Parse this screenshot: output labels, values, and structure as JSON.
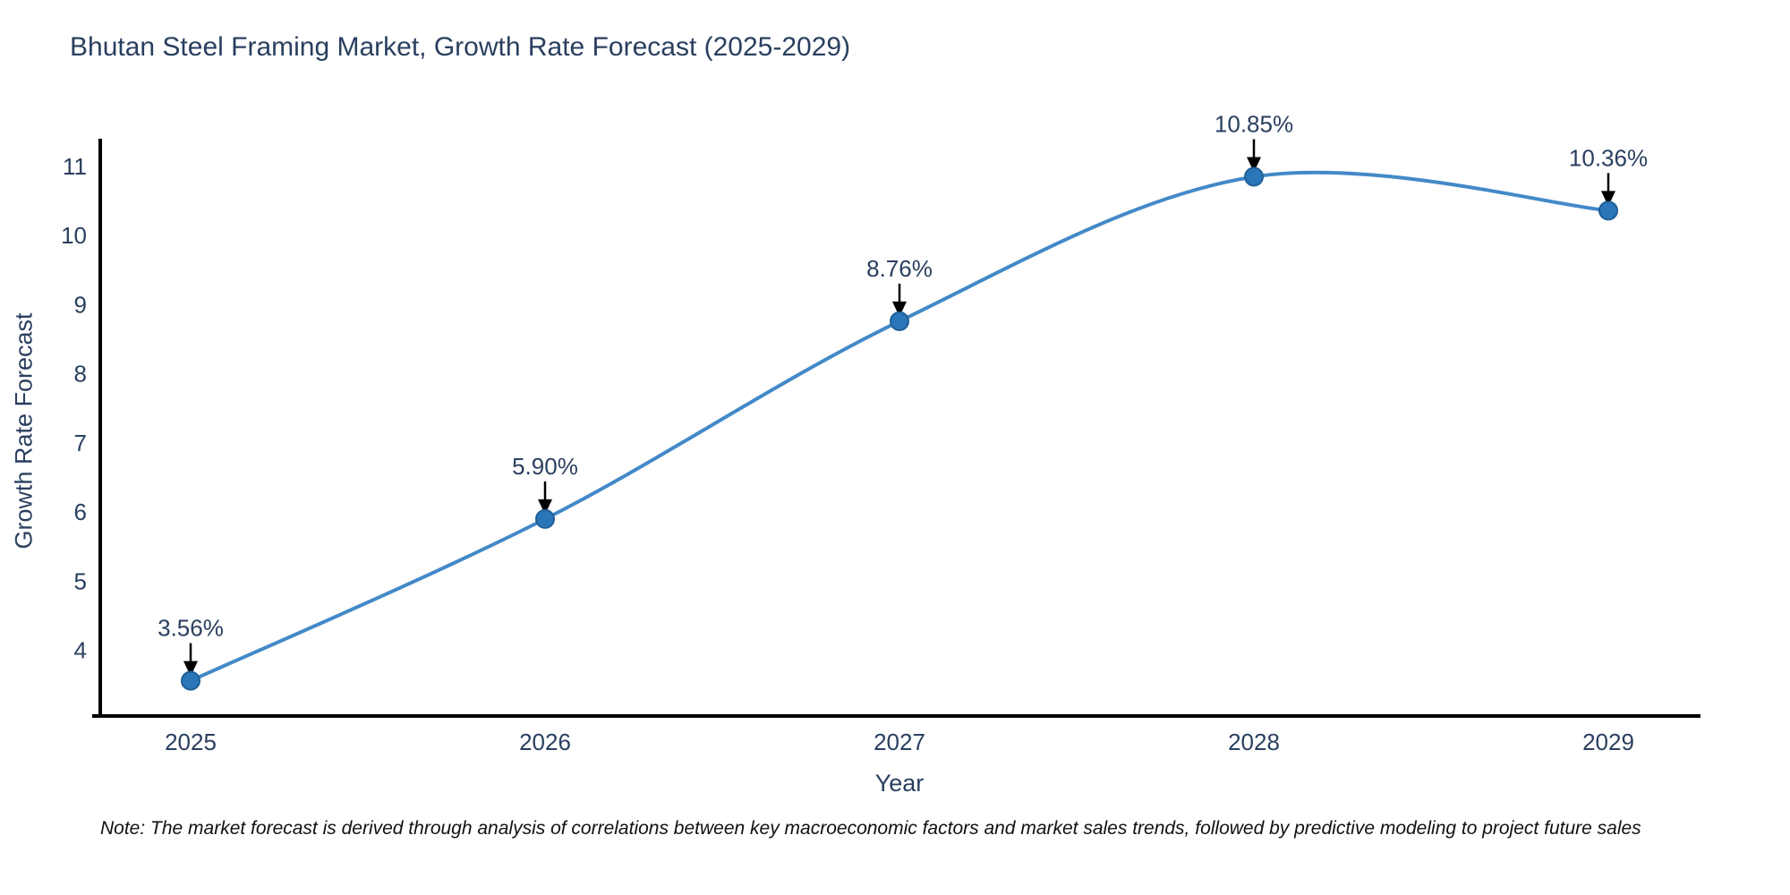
{
  "title": "Bhutan Steel Framing Market, Growth Rate Forecast (2025-2029)",
  "note": "Note: The market forecast is derived through analysis of correlations between key macroeconomic factors and market sales trends, followed by predictive modeling to project future sales",
  "chart_data": {
    "type": "line",
    "title": "Bhutan Steel Framing Market, Growth Rate Forecast (2025-2029)",
    "xlabel": "Year",
    "ylabel": "Growth Rate Forecast",
    "categories": [
      "2025",
      "2026",
      "2027",
      "2028",
      "2029"
    ],
    "values": [
      3.56,
      5.9,
      8.76,
      10.85,
      10.36
    ],
    "point_labels": [
      "3.56%",
      "5.90%",
      "8.76%",
      "10.85%",
      "10.36%"
    ],
    "yticks": [
      4,
      5,
      6,
      7,
      8,
      9,
      10,
      11
    ],
    "ylim": [
      3.05,
      11.4
    ],
    "line_shape": "spline",
    "grid": false,
    "legend": "none",
    "colors": {
      "line": "#4389c8",
      "marker": "#2a76b9",
      "marker_edge": "#205f97",
      "axis": "#000000",
      "tick_text": "#2a3f5f",
      "annotation_text": "#2a3f5f",
      "annotation_arrow": "#000000",
      "background": "#ffffff"
    }
  }
}
